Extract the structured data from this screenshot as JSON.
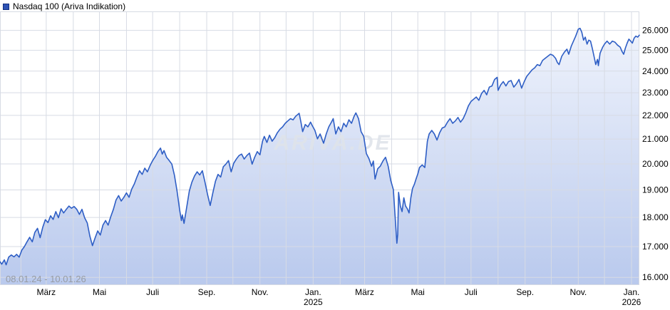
{
  "header": {
    "title": "Nasdaq 100 (Ariva Indikation)"
  },
  "watermark": {
    "text": "ARIVA.DE"
  },
  "range_label": "08.01.24 - 10.01.26",
  "colors": {
    "line": "#2e5ec5",
    "area_top": "#f3f6fd",
    "area_bottom": "#b9c9ed",
    "grid": "#d7dbe4",
    "axis_text": "#000000",
    "muted_text": "#979ca4",
    "watermark": "#dfe3ea",
    "legend_swatch": "#2e52b4",
    "legend_swatch_border": "#14307f"
  },
  "chart_data": {
    "type": "area",
    "title": "Nasdaq 100 (Ariva Indikation)",
    "x_unit": "days since 2024-01-08",
    "x_range": [
      0,
      733
    ],
    "y_scale": "log",
    "ylim": [
      15760,
      26990
    ],
    "grid": true,
    "legend_position": "top-left",
    "y_ticks": {
      "values": [
        26000,
        25000,
        24000,
        23000,
        22000,
        21000,
        20000,
        19000,
        18000,
        17000,
        16000
      ],
      "labels": [
        "26.000",
        "25.000",
        "24.000",
        "23.000",
        "22.000",
        "21.000",
        "20.000",
        "19.000",
        "18.000",
        "17.000",
        "16.000"
      ]
    },
    "x_ticks": [
      {
        "day": 53,
        "label": "März"
      },
      {
        "day": 114,
        "label": "Mai"
      },
      {
        "day": 175,
        "label": "Juli"
      },
      {
        "day": 237,
        "label": "Sep."
      },
      {
        "day": 298,
        "label": "Nov."
      },
      {
        "day": 359,
        "label": "Jan.",
        "sub": "2025"
      },
      {
        "day": 418,
        "label": "März"
      },
      {
        "day": 479,
        "label": "Mai"
      },
      {
        "day": 540,
        "label": "Juli"
      },
      {
        "day": 602,
        "label": "Sep."
      },
      {
        "day": 663,
        "label": "Nov."
      },
      {
        "day": 724,
        "label": "Jan.",
        "sub": "2026"
      }
    ],
    "x_gridlines_days": [
      24,
      53,
      84,
      114,
      145,
      175,
      206,
      237,
      267,
      298,
      328,
      359,
      390,
      418,
      449,
      479,
      510,
      540,
      571,
      602,
      632,
      663,
      693,
      724
    ],
    "series": [
      {
        "name": "Nasdaq 100 (Ariva Indikation)",
        "points": [
          [
            0,
            16500
          ],
          [
            2,
            16420
          ],
          [
            5,
            16560
          ],
          [
            7,
            16400
          ],
          [
            10,
            16650
          ],
          [
            13,
            16720
          ],
          [
            16,
            16660
          ],
          [
            19,
            16740
          ],
          [
            22,
            16650
          ],
          [
            25,
            16880
          ],
          [
            28,
            17000
          ],
          [
            31,
            17160
          ],
          [
            34,
            17310
          ],
          [
            37,
            17160
          ],
          [
            40,
            17480
          ],
          [
            43,
            17620
          ],
          [
            46,
            17300
          ],
          [
            49,
            17660
          ],
          [
            52,
            17920
          ],
          [
            55,
            17820
          ],
          [
            58,
            18060
          ],
          [
            61,
            17930
          ],
          [
            64,
            18210
          ],
          [
            67,
            17990
          ],
          [
            70,
            18310
          ],
          [
            73,
            18160
          ],
          [
            76,
            18290
          ],
          [
            79,
            18410
          ],
          [
            82,
            18330
          ],
          [
            85,
            18390
          ],
          [
            88,
            18290
          ],
          [
            91,
            18110
          ],
          [
            94,
            18290
          ],
          [
            97,
            17990
          ],
          [
            100,
            17810
          ],
          [
            103,
            17360
          ],
          [
            106,
            17030
          ],
          [
            109,
            17290
          ],
          [
            112,
            17530
          ],
          [
            115,
            17390
          ],
          [
            118,
            17730
          ],
          [
            121,
            17890
          ],
          [
            124,
            17730
          ],
          [
            127,
            18030
          ],
          [
            130,
            18290
          ],
          [
            133,
            18630
          ],
          [
            136,
            18790
          ],
          [
            139,
            18590
          ],
          [
            142,
            18730
          ],
          [
            145,
            18890
          ],
          [
            148,
            18730
          ],
          [
            151,
            19030
          ],
          [
            154,
            19230
          ],
          [
            157,
            19490
          ],
          [
            160,
            19730
          ],
          [
            163,
            19590
          ],
          [
            166,
            19830
          ],
          [
            169,
            19690
          ],
          [
            172,
            19930
          ],
          [
            175,
            20130
          ],
          [
            178,
            20290
          ],
          [
            181,
            20490
          ],
          [
            184,
            20630
          ],
          [
            186,
            20390
          ],
          [
            188,
            20530
          ],
          [
            191,
            20260
          ],
          [
            194,
            20130
          ],
          [
            197,
            19990
          ],
          [
            200,
            19560
          ],
          [
            203,
            18960
          ],
          [
            206,
            18260
          ],
          [
            208,
            17890
          ],
          [
            209,
            18090
          ],
          [
            211,
            17790
          ],
          [
            214,
            18360
          ],
          [
            217,
            18960
          ],
          [
            220,
            19290
          ],
          [
            223,
            19530
          ],
          [
            226,
            19690
          ],
          [
            229,
            19570
          ],
          [
            232,
            19730
          ],
          [
            235,
            19290
          ],
          [
            238,
            18830
          ],
          [
            241,
            18430
          ],
          [
            244,
            18890
          ],
          [
            247,
            19330
          ],
          [
            250,
            19590
          ],
          [
            253,
            19490
          ],
          [
            256,
            19890
          ],
          [
            259,
            19990
          ],
          [
            262,
            20130
          ],
          [
            265,
            19690
          ],
          [
            268,
            20030
          ],
          [
            271,
            20190
          ],
          [
            274,
            20330
          ],
          [
            277,
            20390
          ],
          [
            280,
            20190
          ],
          [
            283,
            20330
          ],
          [
            286,
            20430
          ],
          [
            289,
            19990
          ],
          [
            292,
            20260
          ],
          [
            295,
            20490
          ],
          [
            298,
            20360
          ],
          [
            301,
            20910
          ],
          [
            303,
            21110
          ],
          [
            306,
            20860
          ],
          [
            309,
            21160
          ],
          [
            312,
            20910
          ],
          [
            315,
            21060
          ],
          [
            318,
            21260
          ],
          [
            321,
            21410
          ],
          [
            324,
            21510
          ],
          [
            327,
            21660
          ],
          [
            330,
            21760
          ],
          [
            333,
            21860
          ],
          [
            336,
            21810
          ],
          [
            339,
            21960
          ],
          [
            343,
            22090
          ],
          [
            345,
            21710
          ],
          [
            347,
            21310
          ],
          [
            350,
            21610
          ],
          [
            353,
            21510
          ],
          [
            356,
            21710
          ],
          [
            358,
            21560
          ],
          [
            361,
            21360
          ],
          [
            364,
            21010
          ],
          [
            367,
            21210
          ],
          [
            369,
            21010
          ],
          [
            371,
            20830
          ],
          [
            374,
            21210
          ],
          [
            377,
            21510
          ],
          [
            380,
            21710
          ],
          [
            382,
            21860
          ],
          [
            385,
            21210
          ],
          [
            388,
            21510
          ],
          [
            391,
            21310
          ],
          [
            394,
            21660
          ],
          [
            397,
            21510
          ],
          [
            400,
            21810
          ],
          [
            403,
            21660
          ],
          [
            406,
            21960
          ],
          [
            408,
            22110
          ],
          [
            411,
            21860
          ],
          [
            414,
            21310
          ],
          [
            417,
            21110
          ],
          [
            420,
            20410
          ],
          [
            423,
            20210
          ],
          [
            426,
            19910
          ],
          [
            428,
            20110
          ],
          [
            430,
            19410
          ],
          [
            433,
            19810
          ],
          [
            436,
            19910
          ],
          [
            439,
            20110
          ],
          [
            442,
            20260
          ],
          [
            445,
            19910
          ],
          [
            448,
            19360
          ],
          [
            451,
            19010
          ],
          [
            453,
            18010
          ],
          [
            455,
            17110
          ],
          [
            456,
            17410
          ],
          [
            457,
            18910
          ],
          [
            459,
            18410
          ],
          [
            461,
            18210
          ],
          [
            463,
            18710
          ],
          [
            465,
            18410
          ],
          [
            467,
            18310
          ],
          [
            469,
            18160
          ],
          [
            471,
            18710
          ],
          [
            473,
            19060
          ],
          [
            475,
            19210
          ],
          [
            477,
            19410
          ],
          [
            479,
            19610
          ],
          [
            481,
            19860
          ],
          [
            484,
            19960
          ],
          [
            487,
            19860
          ],
          [
            490,
            20910
          ],
          [
            492,
            21210
          ],
          [
            495,
            21360
          ],
          [
            498,
            21210
          ],
          [
            501,
            20960
          ],
          [
            504,
            21260
          ],
          [
            507,
            21460
          ],
          [
            510,
            21510
          ],
          [
            513,
            21710
          ],
          [
            516,
            21860
          ],
          [
            519,
            21660
          ],
          [
            522,
            21760
          ],
          [
            525,
            21910
          ],
          [
            528,
            21710
          ],
          [
            531,
            21860
          ],
          [
            534,
            22110
          ],
          [
            537,
            22410
          ],
          [
            540,
            22610
          ],
          [
            543,
            22710
          ],
          [
            546,
            22810
          ],
          [
            549,
            22660
          ],
          [
            552,
            22960
          ],
          [
            555,
            23110
          ],
          [
            558,
            22910
          ],
          [
            561,
            23260
          ],
          [
            564,
            23310
          ],
          [
            567,
            23610
          ],
          [
            570,
            23710
          ],
          [
            571,
            23110
          ],
          [
            574,
            23360
          ],
          [
            577,
            23510
          ],
          [
            580,
            23310
          ],
          [
            583,
            23510
          ],
          [
            586,
            23560
          ],
          [
            589,
            23260
          ],
          [
            592,
            23410
          ],
          [
            595,
            23610
          ],
          [
            598,
            23210
          ],
          [
            601,
            23510
          ],
          [
            604,
            23760
          ],
          [
            607,
            23910
          ],
          [
            610,
            24060
          ],
          [
            613,
            24160
          ],
          [
            616,
            24310
          ],
          [
            619,
            24260
          ],
          [
            622,
            24510
          ],
          [
            625,
            24610
          ],
          [
            628,
            24710
          ],
          [
            631,
            24810
          ],
          [
            634,
            24760
          ],
          [
            637,
            24610
          ],
          [
            639,
            24410
          ],
          [
            641,
            24310
          ],
          [
            644,
            24710
          ],
          [
            647,
            24910
          ],
          [
            650,
            25060
          ],
          [
            652,
            24810
          ],
          [
            655,
            25210
          ],
          [
            658,
            25510
          ],
          [
            660,
            25710
          ],
          [
            663,
            26060
          ],
          [
            665,
            26110
          ],
          [
            667,
            25910
          ],
          [
            669,
            25510
          ],
          [
            671,
            25660
          ],
          [
            673,
            25310
          ],
          [
            675,
            25510
          ],
          [
            677,
            25460
          ],
          [
            679,
            25110
          ],
          [
            681,
            24710
          ],
          [
            683,
            24310
          ],
          [
            685,
            24560
          ],
          [
            686,
            24260
          ],
          [
            688,
            24860
          ],
          [
            691,
            25160
          ],
          [
            693,
            25310
          ],
          [
            696,
            25460
          ],
          [
            699,
            25310
          ],
          [
            702,
            25460
          ],
          [
            705,
            25410
          ],
          [
            708,
            25260
          ],
          [
            711,
            25160
          ],
          [
            713,
            24960
          ],
          [
            715,
            24810
          ],
          [
            717,
            25110
          ],
          [
            719,
            25360
          ],
          [
            721,
            25560
          ],
          [
            723,
            25460
          ],
          [
            725,
            25360
          ],
          [
            727,
            25610
          ],
          [
            729,
            25710
          ],
          [
            731,
            25660
          ],
          [
            733,
            25760
          ]
        ]
      }
    ]
  }
}
